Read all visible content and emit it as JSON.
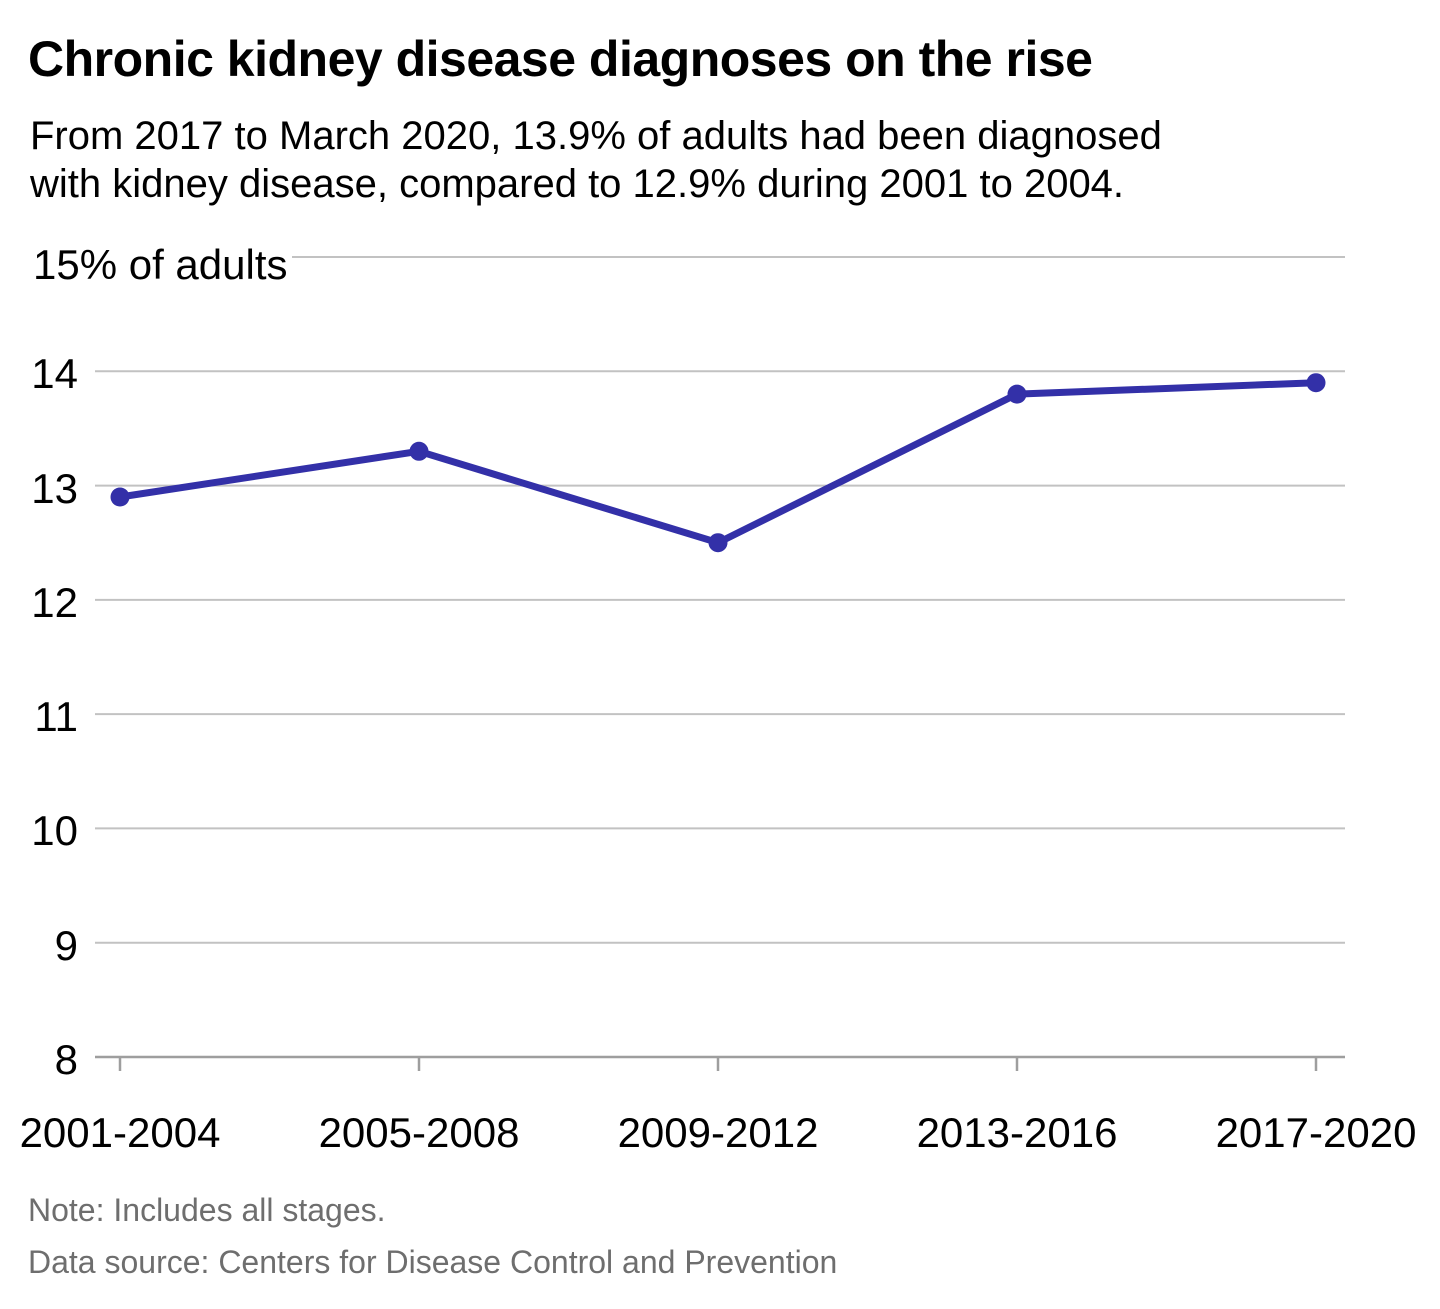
{
  "chart_data": {
    "type": "line",
    "title": "Chronic kidney disease diagnoses on the rise",
    "subtitle": "From 2017 to March 2020, 13.9% of adults had been diagnosed with kidney disease, compared to 12.9% during 2001 to 2004.",
    "subtitle_lines": [
      "From 2017 to March 2020, 13.9% of adults had been diagnosed",
      "with kidney disease, compared to 12.9% during 2001 to 2004."
    ],
    "categories": [
      "2001-2004",
      "2005-2008",
      "2009-2012",
      "2013-2016",
      "2017-2020"
    ],
    "values": [
      12.9,
      13.3,
      12.5,
      13.8,
      13.9
    ],
    "xlabel": "",
    "ylabel": "% of adults",
    "ylim": [
      8,
      15
    ],
    "y_ticks": [
      8,
      9,
      10,
      11,
      12,
      13,
      14
    ],
    "y_top_tick": {
      "value": 15,
      "label": "15% of adults"
    },
    "grid": "horizontal",
    "legend": "none",
    "line_color": "#3330a8",
    "point_color": "#3330a8",
    "gridline_color": "#c2c2c2",
    "axis_color": "#9e9e9e"
  },
  "footer": {
    "note": "Note: Includes all stages.",
    "source": "Data source: Centers for Disease Control and Prevention"
  }
}
